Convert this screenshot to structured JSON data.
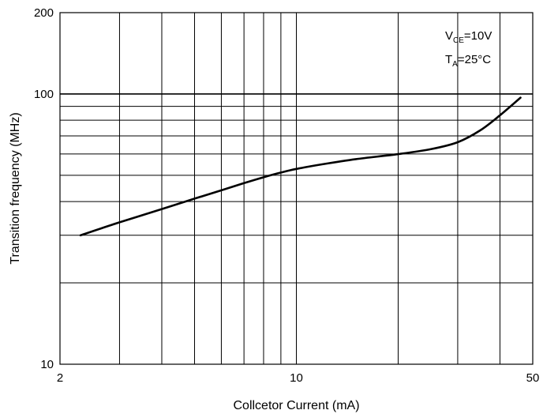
{
  "chart_data": {
    "type": "line",
    "x_scale": "log",
    "y_scale": "log",
    "xlim": [
      2,
      50
    ],
    "ylim": [
      10,
      200
    ],
    "xlabel": "Collcetor Current (mA)",
    "ylabel": "Transition frequency (MHz)",
    "x_ticks": [
      {
        "value": 2,
        "label": "2"
      },
      {
        "value": 10,
        "label": "10"
      },
      {
        "value": 50,
        "label": "50"
      }
    ],
    "y_ticks": [
      {
        "value": 10,
        "label": "10"
      },
      {
        "value": 100,
        "label": "100"
      },
      {
        "value": 200,
        "label": "200"
      }
    ],
    "grid": true,
    "x_gridlines": [
      3,
      4,
      5,
      6,
      7,
      8,
      9,
      10,
      20,
      30,
      40
    ],
    "y_gridlines": [
      20,
      30,
      40,
      50,
      60,
      70,
      80,
      90,
      100
    ],
    "annotations": [
      {
        "main": "V",
        "sub": "CE",
        "rest": "=10V"
      },
      {
        "main": "T",
        "sub": "A",
        "rest": "=25°C"
      }
    ],
    "series": [
      {
        "color": "#000000",
        "x": [
          2.3,
          3,
          4,
          5,
          6,
          7,
          8,
          9,
          10,
          12,
          15,
          20,
          25,
          30,
          35,
          40,
          46
        ],
        "y": [
          30,
          33.5,
          37.5,
          41,
          44,
          46.8,
          49.2,
          51.2,
          52.8,
          55,
          57.4,
          59.9,
          62.5,
          66.3,
          73.4,
          83.4,
          96.9
        ]
      }
    ]
  }
}
